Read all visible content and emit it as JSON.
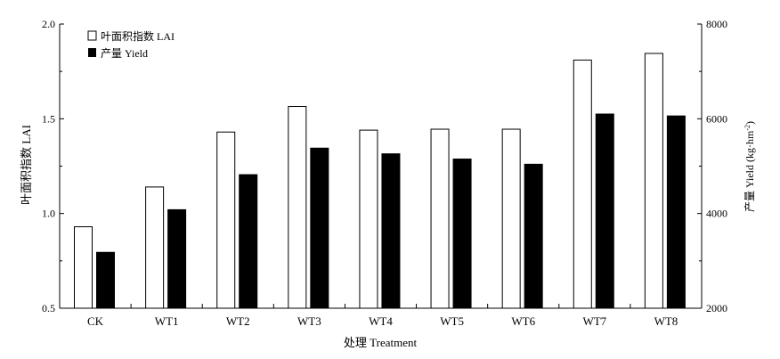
{
  "chart_data": {
    "type": "bar",
    "categories": [
      "CK",
      "WT1",
      "WT2",
      "WT3",
      "WT4",
      "WT5",
      "WT6",
      "WT7",
      "WT8"
    ],
    "series": [
      {
        "name": "叶面积指数 LAI",
        "axis": "left",
        "fill": "#ffffff",
        "values": [
          0.93,
          1.14,
          1.43,
          1.565,
          1.44,
          1.445,
          1.445,
          1.81,
          1.845
        ]
      },
      {
        "name": "产量 Yield",
        "axis": "right",
        "fill": "#000000",
        "values": [
          3180,
          4080,
          4820,
          5380,
          5260,
          5150,
          5040,
          6100,
          6060
        ]
      }
    ],
    "xlabel": "处理 Treatment",
    "ylabel_left": "叶面积指数 LAI",
    "ylabel_right_main": "产量 Yield (kg·hm",
    "ylabel_right_sup": "-2",
    "ylabel_right_close": ")",
    "ylim_left": [
      0.5,
      2.0
    ],
    "yticks_left": [
      "0.5",
      "1.0",
      "1.5",
      "2.0"
    ],
    "ylim_right": [
      2000,
      8000
    ],
    "yticks_right": [
      "2000",
      "4000",
      "6000",
      "8000"
    ],
    "legend_position": "top-left",
    "grid": false
  }
}
